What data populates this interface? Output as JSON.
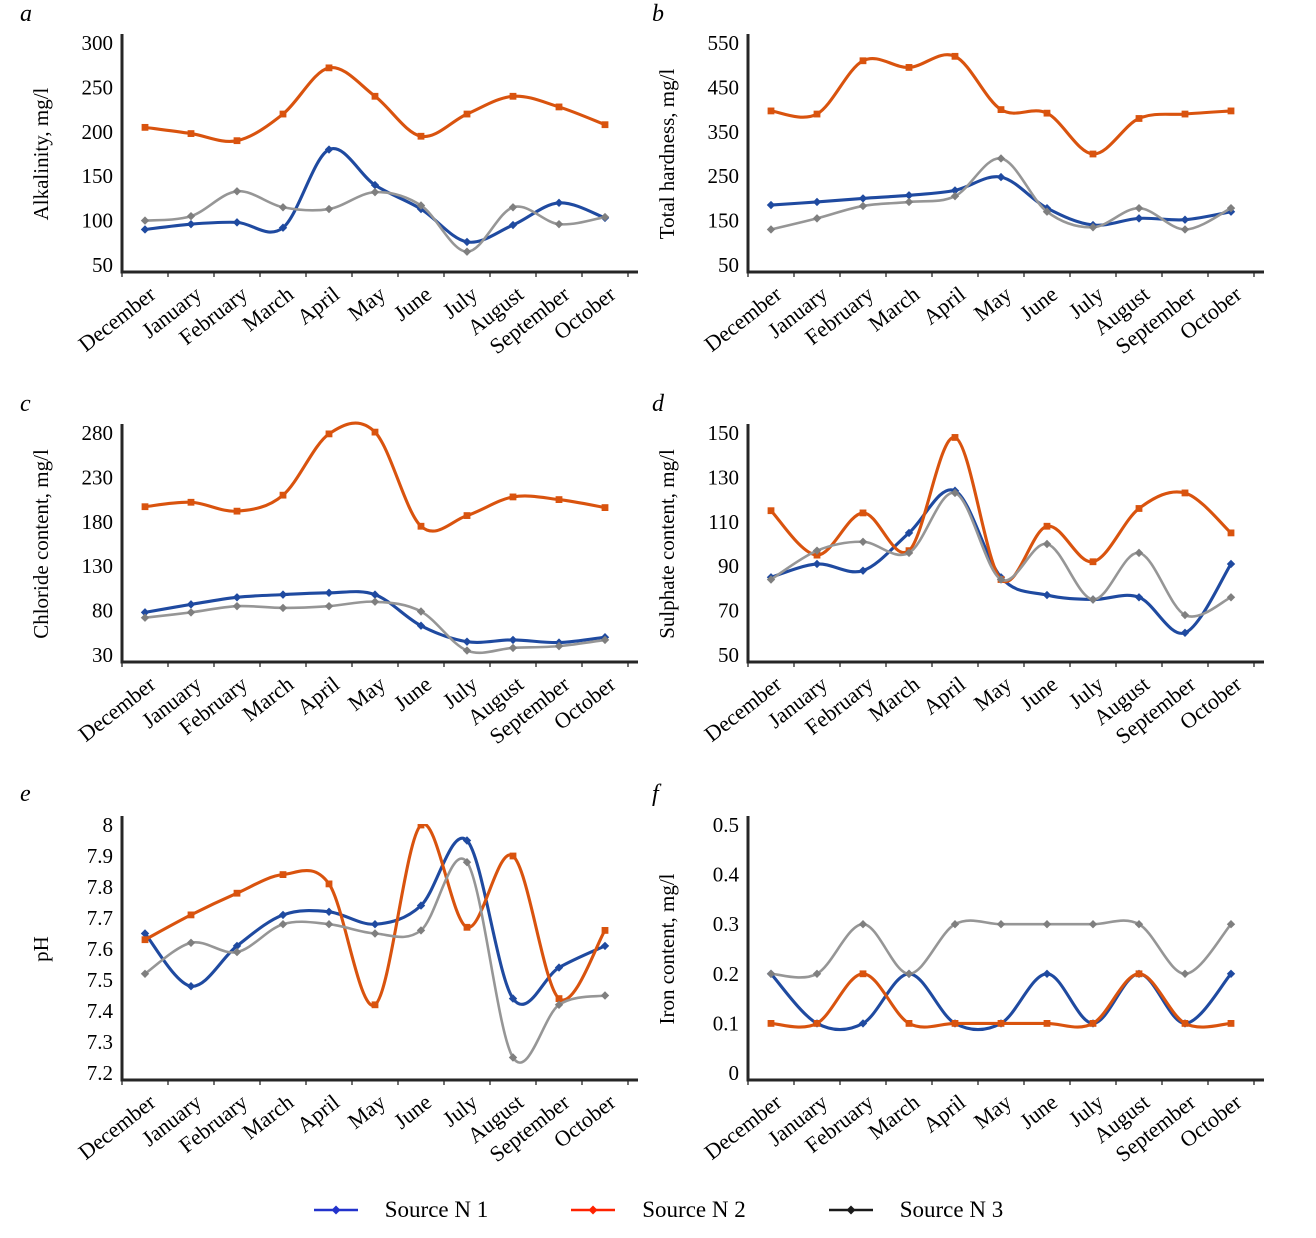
{
  "page": {
    "background": "#ffffff"
  },
  "months": [
    "December",
    "January",
    "February",
    "March",
    "April",
    "May",
    "June",
    "July",
    "August",
    "September",
    "October"
  ],
  "axis_color": "#262626",
  "legend": {
    "items": [
      {
        "label": "Source N 1",
        "series": "s1",
        "color": "#2233cc"
      },
      {
        "label": "Source N 2",
        "series": "s2",
        "color": "#ff2200"
      },
      {
        "label": "Source N 3",
        "series": "s3",
        "color": "#1a1a1a"
      }
    ]
  },
  "chart_data": [
    {
      "type": "line",
      "letter": "a",
      "title": "",
      "xlabel": "",
      "ylabel": "Alkalinity, mg/l",
      "y_ticks": [
        "300",
        "250",
        "200",
        "150",
        "100",
        "50"
      ],
      "ylim": [
        50,
        300
      ],
      "grid": false,
      "legend_position": "bottom",
      "series": [
        {
          "name": "Source N 1",
          "color": "#1f4aa0",
          "marker": "diamond",
          "values": [
            90,
            96,
            98,
            92,
            180,
            140,
            113,
            76,
            95,
            120,
            103
          ]
        },
        {
          "name": "Source N 2",
          "color": "#d9530e",
          "marker": "square",
          "values": [
            205,
            198,
            190,
            220,
            272,
            240,
            195,
            220,
            240,
            228,
            208
          ]
        },
        {
          "name": "Source N 3",
          "color": "#969696",
          "marker": "diamond",
          "values": [
            100,
            105,
            133,
            115,
            113,
            132,
            117,
            65,
            115,
            96,
            104
          ]
        }
      ]
    },
    {
      "type": "line",
      "letter": "b",
      "title": "",
      "xlabel": "",
      "ylabel": "Total hardness, mg/l",
      "y_ticks": [
        "550",
        "450",
        "350",
        "250",
        "150",
        "50"
      ],
      "ylim": [
        50,
        550
      ],
      "grid": false,
      "legend_position": "bottom",
      "series": [
        {
          "name": "Source N 1",
          "color": "#1f4aa0",
          "marker": "diamond",
          "values": [
            185,
            192,
            200,
            207,
            218,
            248,
            178,
            140,
            155,
            152,
            170
          ]
        },
        {
          "name": "Source N 2",
          "color": "#d9530e",
          "marker": "square",
          "values": [
            397,
            390,
            510,
            495,
            520,
            400,
            392,
            300,
            380,
            390,
            397
          ]
        },
        {
          "name": "Source N 3",
          "color": "#969696",
          "marker": "diamond",
          "values": [
            130,
            155,
            183,
            192,
            205,
            290,
            170,
            135,
            178,
            130,
            178
          ]
        }
      ]
    },
    {
      "type": "line",
      "letter": "c",
      "title": "",
      "xlabel": "",
      "ylabel": "Chloride content, mg/l",
      "y_ticks": [
        "280",
        "230",
        "180",
        "130",
        "80",
        "30"
      ],
      "ylim": [
        30,
        280
      ],
      "grid": false,
      "legend_position": "bottom",
      "series": [
        {
          "name": "Source N 1",
          "color": "#1f4aa0",
          "marker": "diamond",
          "values": [
            78,
            87,
            95,
            98,
            100,
            98,
            63,
            45,
            47,
            44,
            50
          ]
        },
        {
          "name": "Source N 2",
          "color": "#d9530e",
          "marker": "square",
          "values": [
            197,
            202,
            192,
            210,
            279,
            281,
            175,
            187,
            208,
            205,
            196
          ]
        },
        {
          "name": "Source N 3",
          "color": "#969696",
          "marker": "diamond",
          "values": [
            72,
            78,
            85,
            83,
            85,
            90,
            79,
            35,
            38,
            40,
            47
          ]
        }
      ]
    },
    {
      "type": "line",
      "letter": "d",
      "title": "",
      "xlabel": "",
      "ylabel": "Sulphate content, mg/l",
      "y_ticks": [
        "150",
        "130",
        "110",
        "90",
        "70",
        "50"
      ],
      "ylim": [
        50,
        150
      ],
      "grid": false,
      "legend_position": "bottom",
      "series": [
        {
          "name": "Source N 1",
          "color": "#1f4aa0",
          "marker": "diamond",
          "values": [
            85,
            91,
            88,
            105,
            124,
            85,
            77,
            75,
            76,
            60,
            91
          ]
        },
        {
          "name": "Source N 2",
          "color": "#d9530e",
          "marker": "square",
          "values": [
            115,
            95,
            114,
            97,
            148,
            84,
            108,
            92,
            116,
            123,
            105
          ]
        },
        {
          "name": "Source N 3",
          "color": "#969696",
          "marker": "diamond",
          "values": [
            84,
            97,
            101,
            96,
            123,
            84,
            100,
            75,
            96,
            68,
            76
          ]
        }
      ]
    },
    {
      "type": "line",
      "letter": "e",
      "title": "",
      "xlabel": "",
      "ylabel": "pH",
      "y_ticks": [
        "8",
        "7.9",
        "7.8",
        "7.7",
        "7.6",
        "7.5",
        "7.4",
        "7.3",
        "7.2"
      ],
      "ylim": [
        7.2,
        8
      ],
      "grid": false,
      "legend_position": "bottom",
      "series": [
        {
          "name": "Source N 1",
          "color": "#1f4aa0",
          "marker": "diamond",
          "values": [
            7.65,
            7.48,
            7.61,
            7.71,
            7.72,
            7.68,
            7.74,
            7.95,
            7.44,
            7.54,
            7.61
          ]
        },
        {
          "name": "Source N 2",
          "color": "#d9530e",
          "marker": "square",
          "values": [
            7.63,
            7.71,
            7.78,
            7.84,
            7.81,
            7.42,
            8.0,
            7.67,
            7.9,
            7.44,
            7.66
          ]
        },
        {
          "name": "Source N 3",
          "color": "#969696",
          "marker": "diamond",
          "values": [
            7.52,
            7.62,
            7.59,
            7.68,
            7.68,
            7.65,
            7.66,
            7.88,
            7.25,
            7.42,
            7.45
          ]
        }
      ]
    },
    {
      "type": "line",
      "letter": "f",
      "title": "",
      "xlabel": "",
      "ylabel": "Iron content, mg/l",
      "y_ticks": [
        "0.5",
        "0.4",
        "0.3",
        "0.2",
        "0.1",
        "0"
      ],
      "ylim": [
        0,
        0.5
      ],
      "grid": false,
      "legend_position": "bottom",
      "series": [
        {
          "name": "Source N 1",
          "color": "#1f4aa0",
          "marker": "diamond",
          "values": [
            0.2,
            0.1,
            0.1,
            0.2,
            0.1,
            0.1,
            0.2,
            0.1,
            0.2,
            0.1,
            0.2
          ]
        },
        {
          "name": "Source N 2",
          "color": "#d9530e",
          "marker": "square",
          "values": [
            0.1,
            0.1,
            0.2,
            0.1,
            0.1,
            0.1,
            0.1,
            0.1,
            0.2,
            0.1,
            0.1
          ]
        },
        {
          "name": "Source N 3",
          "color": "#969696",
          "marker": "diamond",
          "values": [
            0.2,
            0.2,
            0.3,
            0.2,
            0.3,
            0.3,
            0.3,
            0.3,
            0.3,
            0.2,
            0.3
          ]
        }
      ]
    }
  ]
}
